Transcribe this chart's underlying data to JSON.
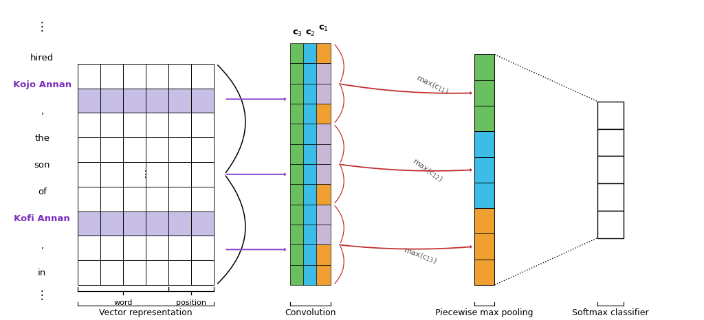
{
  "bg_color": "#ffffff",
  "words_left": [
    "hired",
    "Kojo Annan",
    ",",
    "the",
    "son",
    "of",
    "Kofi Annan",
    ",",
    "in"
  ],
  "purple_rows": [
    1,
    6
  ],
  "colors": {
    "purple_light": "#c8bfe7",
    "purple_text": "#7b2fbe",
    "green": "#6abf5e",
    "blue": "#3bbde8",
    "orange": "#f0a030",
    "lgray": "#c8b8d8",
    "dark_red": "#c03030",
    "black": "#000000",
    "white": "#ffffff",
    "purple_arrow": "#8844cc"
  },
  "labels": {
    "word": "word",
    "position": "position",
    "vector_repr": "Vector representation",
    "convolution": "Convolution",
    "piecewise_max": "Piecewise max pooling",
    "softmax": "Softmax classifier",
    "c1": "c$_1$",
    "c2": "c$_2$",
    "c3": "c$_3$",
    "max_c11": "max(c$_{11}$)",
    "max_c12": "max(c$_{12}$)",
    "max_c13": "max(c$_{13}$)"
  },
  "conv_colors": [
    "#6abf5e",
    "#3bbde8",
    "#6abf5e",
    "#3bbde8",
    "#6abf5e",
    "#3bbde8",
    "#c8b8d8",
    "#c8b8d8",
    "#6abf5e",
    "#3bbde8",
    "#c8b8d8",
    "#f0a030"
  ],
  "pool_colors": [
    "#6abf5e",
    "#6abf5e",
    "#6abf5e",
    "#3bbde8",
    "#3bbde8",
    "#3bbde8",
    "#f0a030",
    "#f0a030",
    "#f0a030"
  ]
}
